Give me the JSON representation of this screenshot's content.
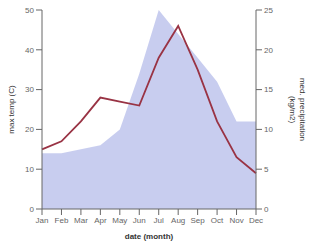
{
  "chart_data": {
    "type": "line",
    "categories": [
      "Jan",
      "Feb",
      "Mar",
      "Apr",
      "May",
      "Jun",
      "Jul",
      "Aug",
      "Sep",
      "Oct",
      "Nov",
      "Dec"
    ],
    "xlabel": "date (month)",
    "ylabel": "max temp (C)",
    "y2label": "med. precipitation\n(kg/m2)",
    "ylim": [
      0,
      50
    ],
    "yticks": [
      0,
      10,
      20,
      30,
      40,
      50
    ],
    "y2lim": [
      0,
      25
    ],
    "y2ticks": [
      0,
      5,
      10,
      15,
      20,
      25
    ],
    "grid": false,
    "series": [
      {
        "type": "area",
        "axis": "y2",
        "color": "#b0b8e8",
        "values": [
          7,
          7,
          7.5,
          8,
          10,
          17,
          25,
          22,
          19,
          16,
          11,
          11
        ]
      },
      {
        "type": "line",
        "axis": "y",
        "color": "#993344",
        "values": [
          15,
          17,
          22,
          28,
          27,
          26,
          38,
          46,
          35,
          22,
          13,
          9
        ]
      }
    ]
  }
}
